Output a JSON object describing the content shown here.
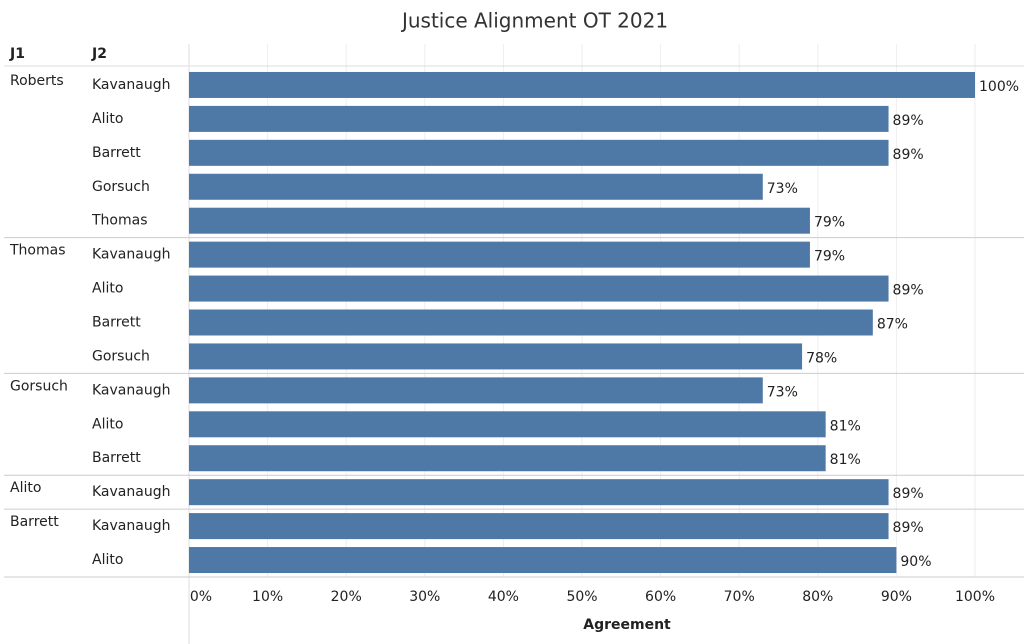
{
  "chart_data": {
    "type": "bar",
    "title": "Justice Alignment OT 2021",
    "row_headers": [
      "J1",
      "J2"
    ],
    "j1": [
      "Roberts",
      null,
      null,
      null,
      null,
      "Thomas",
      null,
      null,
      null,
      "Gorsuch",
      null,
      null,
      "Alito",
      "Barrett",
      null
    ],
    "categories": [
      "Kavanaugh",
      "Alito",
      "Barrett",
      "Gorsuch",
      "Thomas",
      "Kavanaugh",
      "Alito",
      "Barrett",
      "Gorsuch",
      "Kavanaugh",
      "Alito",
      "Barrett",
      "Kavanaugh",
      "Kavanaugh",
      "Alito"
    ],
    "values": [
      100,
      89,
      89,
      73,
      79,
      79,
      89,
      87,
      78,
      73,
      81,
      81,
      89,
      89,
      90
    ],
    "value_labels": [
      "100%",
      "89%",
      "89%",
      "73%",
      "79%",
      "79%",
      "89%",
      "87%",
      "78%",
      "73%",
      "81%",
      "81%",
      "89%",
      "89%",
      "90%"
    ],
    "color": "#4e79a7",
    "x_label": "Agreement",
    "xlim": [
      0,
      100
    ],
    "xticks": [
      {
        "value": 0,
        "label": "0%"
      },
      {
        "value": 10,
        "label": "10%"
      },
      {
        "value": 20,
        "label": "20%"
      },
      {
        "value": 30,
        "label": "30%"
      },
      {
        "value": 40,
        "label": "40%"
      },
      {
        "value": 50,
        "label": "50%"
      },
      {
        "value": 60,
        "label": "60%"
      },
      {
        "value": 70,
        "label": "70%"
      },
      {
        "value": 80,
        "label": "80%"
      },
      {
        "value": 90,
        "label": "90%"
      },
      {
        "value": 100,
        "label": "100%"
      }
    ],
    "grid": true
  }
}
